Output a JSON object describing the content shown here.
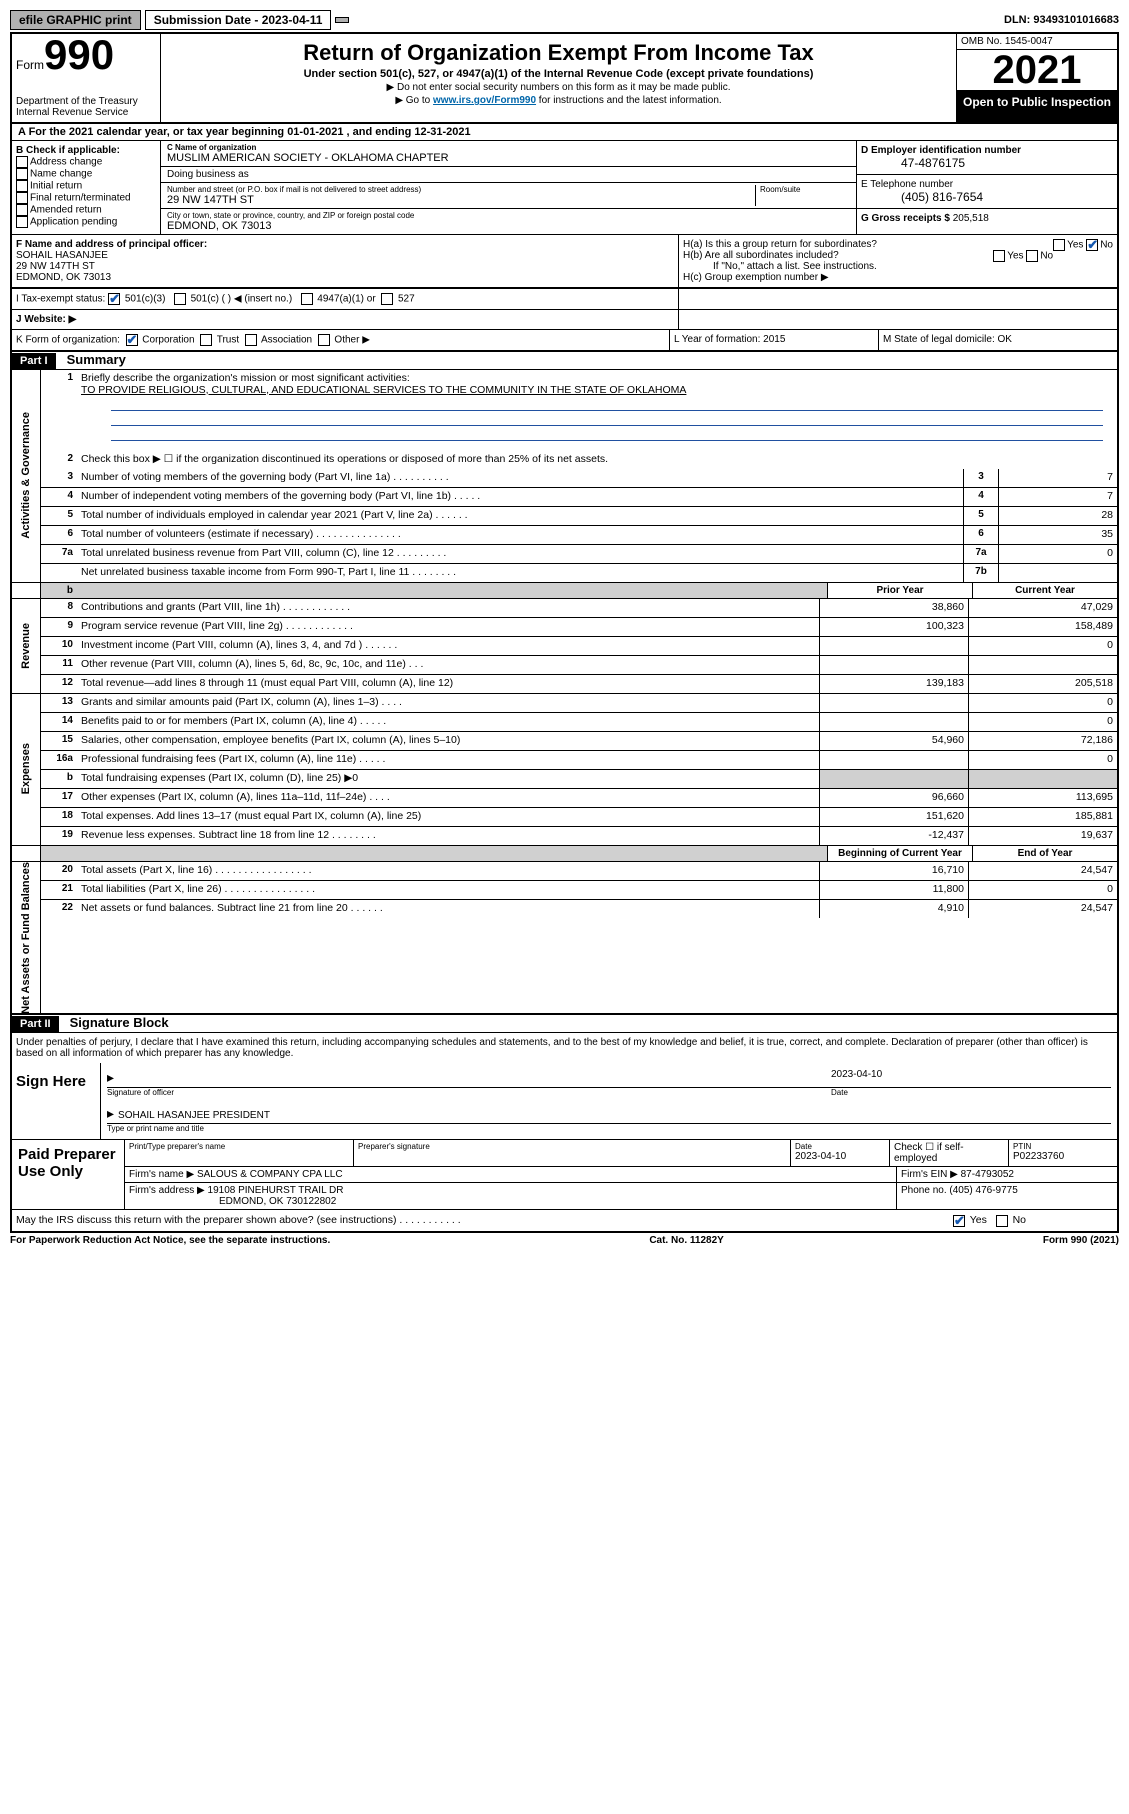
{
  "top": {
    "efile": "efile GRAPHIC print",
    "submission_label": "Submission Date - 2023-04-11",
    "dln": "DLN: 93493101016683"
  },
  "header": {
    "form_word": "Form",
    "form_num": "990",
    "dept": "Department of the Treasury\nInternal Revenue Service",
    "title": "Return of Organization Exempt From Income Tax",
    "sub": "Under section 501(c), 527, or 4947(a)(1) of the Internal Revenue Code (except private foundations)",
    "note1": "▶ Do not enter social security numbers on this form as it may be made public.",
    "note2_pre": "▶ Go to ",
    "note2_link": "www.irs.gov/Form990",
    "note2_post": " for instructions and the latest information.",
    "omb": "OMB No. 1545-0047",
    "year": "2021",
    "inspection": "Open to Public Inspection"
  },
  "rowA": "A For the 2021 calendar year, or tax year beginning 01-01-2021     , and ending 12-31-2021",
  "colB": {
    "label": "B Check if applicable:",
    "items": [
      "Address change",
      "Name change",
      "Initial return",
      "Final return/terminated",
      "Amended return",
      "Application pending"
    ]
  },
  "colC": {
    "name_label": "C Name of organization",
    "name": "MUSLIM AMERICAN SOCIETY - OKLAHOMA CHAPTER",
    "dba_label": "Doing business as",
    "dba": "",
    "street_label": "Number and street (or P.O. box if mail is not delivered to street address)",
    "room_label": "Room/suite",
    "street": "29 NW 147TH ST",
    "city_label": "City or town, state or province, country, and ZIP or foreign postal code",
    "city": "EDMOND, OK  73013"
  },
  "colD": {
    "ein_label": "D Employer identification number",
    "ein": "47-4876175",
    "phone_label": "E Telephone number",
    "phone": "(405) 816-7654",
    "gross_label": "G Gross receipts $",
    "gross": "205,518"
  },
  "f": {
    "label": "F Name and address of principal officer:",
    "name": "SOHAIL HASANJEE",
    "street": "29 NW 147TH ST",
    "city": "EDMOND, OK  73013",
    "ha": "H(a)  Is this a group return for subordinates?",
    "ha_no": "No",
    "hb": "H(b)  Are all subordinates included?",
    "hnote": "If \"No,\" attach a list. See instructions.",
    "hc": "H(c)  Group exemption number ▶"
  },
  "i": {
    "label": "I   Tax-exempt status:",
    "c3": "501(c)(3)",
    "cn": "501(c) (   ) ◀ (insert no.)",
    "a1": "4947(a)(1) or",
    "s527": "527"
  },
  "j": {
    "label": "J   Website: ▶"
  },
  "k": {
    "label": "K Form of organization:",
    "corp": "Corporation",
    "trust": "Trust",
    "assoc": "Association",
    "other": "Other ▶",
    "l": "L Year of formation: 2015",
    "m": "M State of legal domicile: OK"
  },
  "part1": {
    "hdr": "Part I",
    "title": "Summary",
    "l1": "Briefly describe the organization's mission or most significant activities:",
    "mission": "TO PROVIDE RELIGIOUS, CULTURAL, AND EDUCATIONAL SERVICES TO THE COMMUNITY IN THE STATE OF OKLAHOMA",
    "l2": "Check this box ▶ ☐  if the organization discontinued its operations or disposed of more than 25% of its net assets.",
    "rows_gov": [
      {
        "n": "3",
        "t": "Number of voting members of the governing body (Part VI, line 1a)   .    .    .    .    .    .    .    .    .    .",
        "b": "3",
        "v": "7"
      },
      {
        "n": "4",
        "t": "Number of independent voting members of the governing body (Part VI, line 1b)   .    .    .    .    .",
        "b": "4",
        "v": "7"
      },
      {
        "n": "5",
        "t": "Total number of individuals employed in calendar year 2021 (Part V, line 2a)   .    .    .    .    .    .",
        "b": "5",
        "v": "28"
      },
      {
        "n": "6",
        "t": "Total number of volunteers (estimate if necessary)   .    .    .    .    .    .    .    .    .    .    .    .    .    .    .",
        "b": "6",
        "v": "35"
      },
      {
        "n": "7a",
        "t": "Total unrelated business revenue from Part VIII, column (C), line 12   .    .    .    .    .    .    .    .    .",
        "b": "7a",
        "v": "0"
      },
      {
        "n": "",
        "t": "Net unrelated business taxable income from Form 990-T, Part I, line 11   .    .    .    .    .    .    .    .",
        "b": "7b",
        "v": ""
      }
    ],
    "col_prior": "Prior Year",
    "col_curr": "Current Year",
    "rows_rev": [
      {
        "n": "8",
        "t": "Contributions and grants (Part VIII, line 1h)   .    .    .    .    .    .    .    .    .    .    .    .",
        "p": "38,860",
        "c": "47,029"
      },
      {
        "n": "9",
        "t": "Program service revenue (Part VIII, line 2g)   .    .    .    .    .    .    .    .    .    .    .    .",
        "p": "100,323",
        "c": "158,489"
      },
      {
        "n": "10",
        "t": "Investment income (Part VIII, column (A), lines 3, 4, and 7d )   .    .    .    .    .    .",
        "p": "",
        "c": "0"
      },
      {
        "n": "11",
        "t": "Other revenue (Part VIII, column (A), lines 5, 6d, 8c, 9c, 10c, and 11e)   .    .    .",
        "p": "",
        "c": ""
      },
      {
        "n": "12",
        "t": "Total revenue—add lines 8 through 11 (must equal Part VIII, column (A), line 12)",
        "p": "139,183",
        "c": "205,518"
      }
    ],
    "rows_exp": [
      {
        "n": "13",
        "t": "Grants and similar amounts paid (Part IX, column (A), lines 1–3)   .    .    .    .",
        "p": "",
        "c": "0"
      },
      {
        "n": "14",
        "t": "Benefits paid to or for members (Part IX, column (A), line 4)   .    .    .    .    .",
        "p": "",
        "c": "0"
      },
      {
        "n": "15",
        "t": "Salaries, other compensation, employee benefits (Part IX, column (A), lines 5–10)",
        "p": "54,960",
        "c": "72,186"
      },
      {
        "n": "16a",
        "t": "Professional fundraising fees (Part IX, column (A), line 11e)   .    .    .    .    .",
        "p": "",
        "c": "0"
      },
      {
        "n": "b",
        "t": "Total fundraising expenses (Part IX, column (D), line 25) ▶0",
        "p": "GREY",
        "c": "GREY"
      },
      {
        "n": "17",
        "t": "Other expenses (Part IX, column (A), lines 11a–11d, 11f–24e)   .    .    .    .",
        "p": "96,660",
        "c": "113,695"
      },
      {
        "n": "18",
        "t": "Total expenses. Add lines 13–17 (must equal Part IX, column (A), line 25)",
        "p": "151,620",
        "c": "185,881"
      },
      {
        "n": "19",
        "t": "Revenue less expenses. Subtract line 18 from line 12   .    .    .    .    .    .    .    .",
        "p": "-12,437",
        "c": "19,637"
      }
    ],
    "col_beg": "Beginning of Current Year",
    "col_end": "End of Year",
    "rows_net": [
      {
        "n": "20",
        "t": "Total assets (Part X, line 16)   .    .    .    .    .    .    .    .    .    .    .    .    .    .    .    .    .",
        "p": "16,710",
        "c": "24,547"
      },
      {
        "n": "21",
        "t": "Total liabilities (Part X, line 26)   .    .    .    .    .    .    .    .    .    .    .    .    .    .    .    .",
        "p": "11,800",
        "c": "0"
      },
      {
        "n": "22",
        "t": "Net assets or fund balances. Subtract line 21 from line 20   .    .    .    .    .    .",
        "p": "4,910",
        "c": "24,547"
      }
    ],
    "side_gov": "Activities & Governance",
    "side_rev": "Revenue",
    "side_exp": "Expenses",
    "side_net": "Net Assets or Fund Balances"
  },
  "part2": {
    "hdr": "Part II",
    "title": "Signature Block",
    "decl": "Under penalties of perjury, I declare that I have examined this return, including accompanying schedules and statements, and to the best of my knowledge and belief, it is true, correct, and complete. Declaration of preparer (other than officer) is based on all information of which preparer has any knowledge.",
    "sign_here": "Sign Here",
    "sig_officer": "Signature of officer",
    "sig_date": "Date",
    "sig_date_val": "2023-04-10",
    "sig_name": "SOHAIL HASANJEE  PRESIDENT",
    "sig_name_label": "Type or print name and title",
    "paid": "Paid Preparer Use Only",
    "prep_name_label": "Print/Type preparer's name",
    "prep_sig_label": "Preparer's signature",
    "prep_date_label": "Date",
    "prep_date": "2023-04-10",
    "prep_check": "Check ☐ if self-employed",
    "ptin_label": "PTIN",
    "ptin": "P02233760",
    "firm_name_label": "Firm's name     ▶",
    "firm_name": "SALOUS & COMPANY CPA LLC",
    "firm_ein_label": "Firm's EIN ▶",
    "firm_ein": "87-4793052",
    "firm_addr_label": "Firm's address ▶",
    "firm_addr": "19108 PINEHURST TRAIL DR",
    "firm_city": "EDMOND, OK  730122802",
    "phone_label": "Phone no.",
    "phone": "(405) 476-9775",
    "may_irs": "May the IRS discuss this return with the preparer shown above? (see instructions)   .    .    .    .    .    .    .    .    .    .    .",
    "may_yes": "Yes",
    "may_no": "No"
  },
  "footer": {
    "left": "For Paperwork Reduction Act Notice, see the separate instructions.",
    "mid": "Cat. No. 11282Y",
    "right": "Form 990 (2021)"
  }
}
